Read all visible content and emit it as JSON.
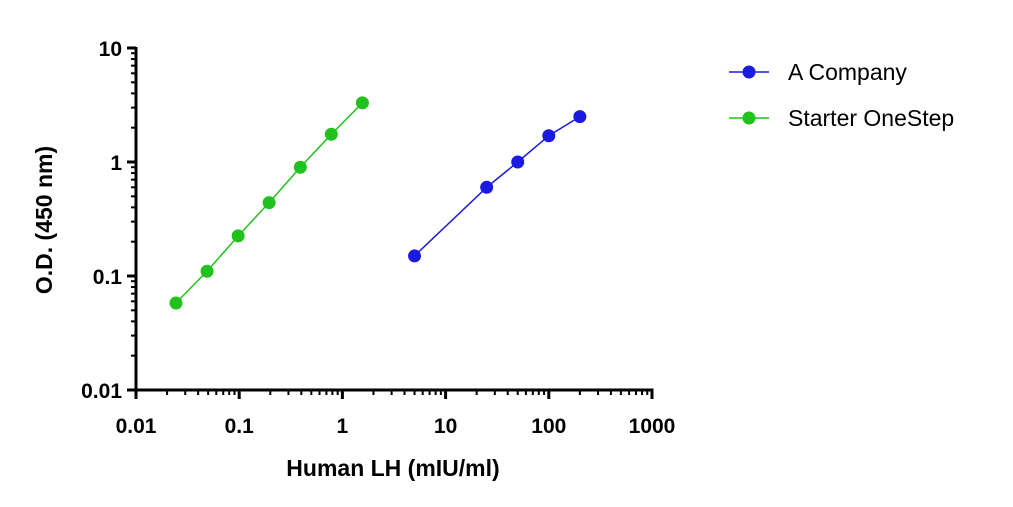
{
  "chart_data": {
    "type": "line",
    "xscale": "log",
    "yscale": "log",
    "xlabel": "Human LH (mIU/ml)",
    "ylabel": "O.D. (450 nm)",
    "xlim": [
      0.01,
      1000
    ],
    "ylim": [
      0.01,
      10
    ],
    "x_ticks": [
      "0.01",
      "0.1",
      "1",
      "10",
      "100",
      "1000"
    ],
    "y_ticks": [
      "0.01",
      "0.1",
      "1",
      "10"
    ],
    "grid": false,
    "legend_position": "top-right",
    "series": [
      {
        "name": "A Company",
        "color": "#1a1ae0",
        "x": [
          5,
          25,
          50,
          100,
          200
        ],
        "y": [
          0.15,
          0.6,
          1.0,
          1.7,
          2.5
        ]
      },
      {
        "name": "Starter OneStep",
        "color": "#22c21e",
        "x": [
          0.0244,
          0.0488,
          0.0977,
          0.195,
          0.391,
          0.781,
          1.5625
        ],
        "y": [
          0.058,
          0.11,
          0.225,
          0.44,
          0.9,
          1.75,
          3.3
        ]
      }
    ]
  }
}
